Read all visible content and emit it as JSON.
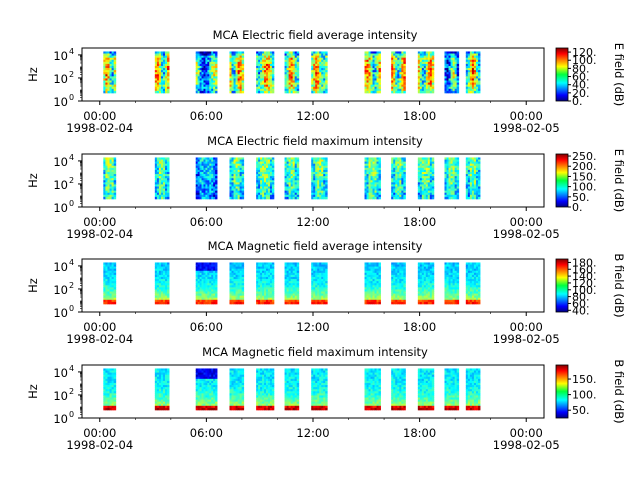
{
  "chart_data": [
    {
      "type": "heatmap",
      "title": "MCA  Electric field average intensity",
      "ylabel": "Hz",
      "yscale": "log",
      "ylim_exp": [
        0,
        4.6
      ],
      "yticks": [
        {
          "base": "10",
          "exp": "0"
        },
        {
          "base": "10",
          "exp": "2"
        },
        {
          "base": "10",
          "exp": "4"
        }
      ],
      "xlim_hours": [
        -1,
        25
      ],
      "xticks": [
        {
          "hour": 0,
          "label": "00:00"
        },
        {
          "hour": 6,
          "label": "06:00"
        },
        {
          "hour": 12,
          "label": "12:00"
        },
        {
          "hour": 18,
          "label": "18:00"
        },
        {
          "hour": 24,
          "label": "00:00"
        }
      ],
      "date_labels": [
        "1998-02-04",
        "1998-02-05"
      ],
      "colorbar": {
        "label": "E field (dB)",
        "min": 0,
        "max": 130,
        "ticks": [
          "0.",
          "20.",
          "40.",
          "60.",
          "80.",
          "100.",
          "120."
        ],
        "tick_values": [
          0,
          20,
          40,
          60,
          80,
          100,
          120
        ]
      },
      "data_extent_exp": [
        0.7,
        4.3
      ],
      "coverage_hours": [
        [
          0.2,
          0.9
        ],
        [
          3.1,
          3.9
        ],
        [
          5.4,
          6.6
        ],
        [
          7.3,
          8.1
        ],
        [
          8.8,
          9.8
        ],
        [
          10.4,
          11.2
        ],
        [
          11.9,
          12.8
        ],
        [
          14.9,
          15.8
        ],
        [
          16.4,
          17.2
        ],
        [
          17.9,
          18.8
        ],
        [
          19.4,
          20.2
        ],
        [
          20.6,
          21.4
        ]
      ],
      "intensity_profile": "average_electric"
    },
    {
      "type": "heatmap",
      "title": "MCA  Electric field maximum intensity",
      "ylabel": "Hz",
      "yscale": "log",
      "ylim_exp": [
        0,
        4.6
      ],
      "yticks": [
        {
          "base": "10",
          "exp": "0"
        },
        {
          "base": "10",
          "exp": "2"
        },
        {
          "base": "10",
          "exp": "4"
        }
      ],
      "xlim_hours": [
        -1,
        25
      ],
      "xticks": [
        {
          "hour": 0,
          "label": "00:00"
        },
        {
          "hour": 6,
          "label": "06:00"
        },
        {
          "hour": 12,
          "label": "12:00"
        },
        {
          "hour": 18,
          "label": "18:00"
        },
        {
          "hour": 24,
          "label": "00:00"
        }
      ],
      "date_labels": [
        "1998-02-04",
        "1998-02-05"
      ],
      "colorbar": {
        "label": "E field (dB)",
        "min": 0,
        "max": 260,
        "ticks": [
          "0.",
          "50.",
          "100.",
          "150.",
          "200.",
          "250."
        ],
        "tick_values": [
          0,
          50,
          100,
          150,
          200,
          250
        ]
      },
      "data_extent_exp": [
        0.7,
        4.3
      ],
      "coverage_hours": [
        [
          0.2,
          0.9
        ],
        [
          3.1,
          3.9
        ],
        [
          5.4,
          6.6
        ],
        [
          7.3,
          8.1
        ],
        [
          8.8,
          9.8
        ],
        [
          10.4,
          11.2
        ],
        [
          11.9,
          12.8
        ],
        [
          14.9,
          15.8
        ],
        [
          16.4,
          17.2
        ],
        [
          17.9,
          18.8
        ],
        [
          19.4,
          20.2
        ],
        [
          20.6,
          21.4
        ]
      ],
      "intensity_profile": "maximum_electric"
    },
    {
      "type": "heatmap",
      "title": "MCA  Magnetic field average intensity",
      "ylabel": "Hz",
      "yscale": "log",
      "ylim_exp": [
        0,
        4.6
      ],
      "yticks": [
        {
          "base": "10",
          "exp": "0"
        },
        {
          "base": "10",
          "exp": "2"
        },
        {
          "base": "10",
          "exp": "4"
        }
      ],
      "xlim_hours": [
        -1,
        25
      ],
      "xticks": [
        {
          "hour": 0,
          "label": "00:00"
        },
        {
          "hour": 6,
          "label": "06:00"
        },
        {
          "hour": 12,
          "label": "12:00"
        },
        {
          "hour": 18,
          "label": "18:00"
        },
        {
          "hour": 24,
          "label": "00:00"
        }
      ],
      "date_labels": [
        "1998-02-04",
        "1998-02-05"
      ],
      "colorbar": {
        "label": "B field (dB)",
        "min": 35,
        "max": 190,
        "ticks": [
          "40.",
          "60.",
          "80.",
          "100.",
          "120.",
          "140.",
          "160.",
          "180."
        ],
        "tick_values": [
          40,
          60,
          80,
          100,
          120,
          140,
          160,
          180
        ]
      },
      "data_extent_exp": [
        0.7,
        4.3
      ],
      "coverage_hours": [
        [
          0.2,
          0.9
        ],
        [
          3.1,
          3.9
        ],
        [
          5.4,
          6.6
        ],
        [
          7.3,
          8.1
        ],
        [
          8.8,
          9.8
        ],
        [
          10.4,
          11.2
        ],
        [
          11.9,
          12.8
        ],
        [
          14.9,
          15.8
        ],
        [
          16.4,
          17.2
        ],
        [
          17.9,
          18.8
        ],
        [
          19.4,
          20.2
        ],
        [
          20.6,
          21.4
        ]
      ],
      "intensity_profile": "average_magnetic"
    },
    {
      "type": "heatmap",
      "title": "MCA  Magnetic field maximum intensity",
      "ylabel": "Hz",
      "yscale": "log",
      "ylim_exp": [
        0,
        4.6
      ],
      "yticks": [
        {
          "base": "10",
          "exp": "0"
        },
        {
          "base": "10",
          "exp": "2"
        },
        {
          "base": "10",
          "exp": "4"
        }
      ],
      "xlim_hours": [
        -1,
        25
      ],
      "xticks": [
        {
          "hour": 0,
          "label": "00:00"
        },
        {
          "hour": 6,
          "label": "06:00"
        },
        {
          "hour": 12,
          "label": "12:00"
        },
        {
          "hour": 18,
          "label": "18:00"
        },
        {
          "hour": 24,
          "label": "00:00"
        }
      ],
      "date_labels": [
        "1998-02-04",
        "1998-02-05"
      ],
      "colorbar": {
        "label": "B field (dB)",
        "min": 25,
        "max": 195,
        "ticks": [
          "50.",
          "100.",
          "150."
        ],
        "tick_values": [
          50,
          100,
          150
        ]
      },
      "data_extent_exp": [
        0.7,
        4.3
      ],
      "coverage_hours": [
        [
          0.2,
          0.9
        ],
        [
          3.1,
          3.9
        ],
        [
          5.4,
          6.6
        ],
        [
          7.3,
          8.1
        ],
        [
          8.8,
          9.8
        ],
        [
          10.4,
          11.2
        ],
        [
          11.9,
          12.8
        ],
        [
          14.9,
          15.8
        ],
        [
          16.4,
          17.2
        ],
        [
          17.9,
          18.8
        ],
        [
          19.4,
          20.2
        ],
        [
          20.6,
          21.4
        ]
      ],
      "intensity_profile": "maximum_magnetic"
    }
  ]
}
